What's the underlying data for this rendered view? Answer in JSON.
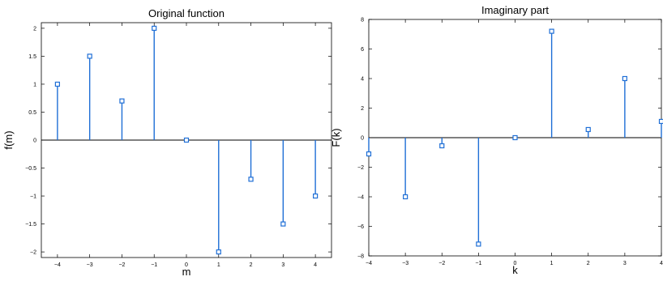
{
  "chart_data": [
    {
      "type": "stem",
      "title": "Original function",
      "xlabel": "m",
      "ylabel": "f(m)",
      "xlim": [
        -4.5,
        4.5
      ],
      "ylim": [
        -2.1,
        2.1
      ],
      "xticks": [
        -4,
        -3,
        -2,
        -1,
        0,
        1,
        2,
        3,
        4
      ],
      "xtick_labels": [
        "−4",
        "−3",
        "−2",
        "−1",
        "0",
        "1",
        "2",
        "3",
        "4"
      ],
      "yticks": [
        -2,
        -1.5,
        -1,
        -0.5,
        0,
        0.5,
        1,
        1.5,
        2
      ],
      "ytick_labels": [
        "−2",
        "−1.5",
        "−1",
        "−0.5",
        "0",
        "0.5",
        "1",
        "1.5",
        "2"
      ],
      "x": [
        -4,
        -3,
        -2,
        -1,
        0,
        1,
        2,
        3,
        4
      ],
      "y": [
        1,
        1.5,
        0.7,
        2,
        0,
        -2,
        -0.7,
        -1.5,
        -1
      ],
      "grid": false,
      "color": "#1f6fd6"
    },
    {
      "type": "stem",
      "title": "Imaginary part",
      "xlabel": "k",
      "ylabel": "F(k)",
      "xlim": [
        -4,
        4
      ],
      "ylim": [
        -8,
        8
      ],
      "xticks": [
        -4,
        -3,
        -2,
        -1,
        0,
        1,
        2,
        3,
        4
      ],
      "xtick_labels": [
        "−4",
        "−3",
        "−2",
        "−1",
        "0",
        "1",
        "2",
        "3",
        "4"
      ],
      "yticks": [
        -8,
        -6,
        -4,
        -2,
        0,
        2,
        4,
        6,
        8
      ],
      "ytick_labels": [
        "−8",
        "−6",
        "−4",
        "−2",
        "0",
        "2",
        "4",
        "6",
        "8"
      ],
      "x": [
        -4,
        -3,
        -2,
        -1,
        0,
        1,
        2,
        3,
        4
      ],
      "y": [
        -1.1,
        -4,
        -0.55,
        -7.2,
        0,
        7.2,
        0.55,
        4,
        1.1
      ],
      "grid": false,
      "color": "#1f6fd6"
    }
  ]
}
